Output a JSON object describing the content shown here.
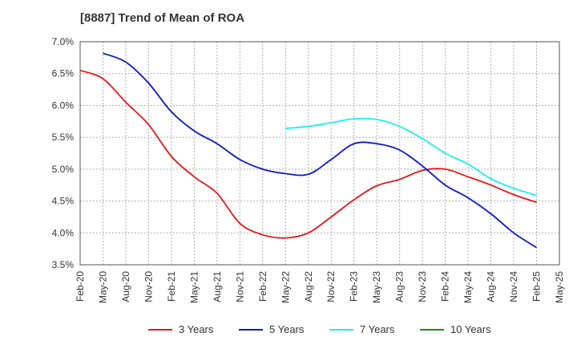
{
  "chart_data": {
    "type": "line",
    "title": "[8887]  Trend of Mean of ROA",
    "xlabel": "",
    "ylabel": "",
    "ylim": [
      3.5,
      7.0
    ],
    "y_ticks": [
      "7.0%",
      "6.5%",
      "6.0%",
      "5.5%",
      "5.0%",
      "4.5%",
      "4.0%",
      "3.5%"
    ],
    "y_tick_values": [
      7.0,
      6.5,
      6.0,
      5.5,
      5.0,
      4.5,
      4.0,
      3.5
    ],
    "categories": [
      "Feb-20",
      "May-20",
      "Aug-20",
      "Nov-20",
      "Feb-21",
      "May-21",
      "Aug-21",
      "Nov-21",
      "Feb-22",
      "May-22",
      "Aug-22",
      "Nov-22",
      "Feb-23",
      "May-23",
      "Aug-23",
      "Nov-23",
      "Feb-24",
      "May-24",
      "Aug-24",
      "Nov-24",
      "Feb-25",
      "May-25"
    ],
    "grid": true,
    "legend_position": "bottom",
    "series": [
      {
        "name": "3 Years",
        "color": "#e31a1c",
        "values": [
          6.55,
          6.42,
          6.05,
          5.7,
          5.2,
          4.88,
          4.62,
          4.15,
          3.97,
          3.92,
          4.0,
          4.25,
          4.52,
          4.74,
          4.84,
          4.98,
          5.0,
          4.88,
          4.75,
          4.6,
          4.48,
          null
        ]
      },
      {
        "name": "5 Years",
        "color": "#0b18c8",
        "values": [
          null,
          6.82,
          6.68,
          6.35,
          5.9,
          5.6,
          5.4,
          5.15,
          5.0,
          4.93,
          4.92,
          5.15,
          5.4,
          5.4,
          5.3,
          5.05,
          4.75,
          4.55,
          4.3,
          4.0,
          3.77,
          null
        ]
      },
      {
        "name": "7 Years",
        "color": "#19f0f0",
        "values": [
          null,
          null,
          null,
          null,
          null,
          null,
          null,
          null,
          null,
          5.64,
          5.67,
          5.73,
          5.79,
          5.78,
          5.67,
          5.48,
          5.25,
          5.08,
          4.85,
          4.7,
          4.59,
          null
        ]
      },
      {
        "name": "10 Years",
        "color": "#1a8a1a",
        "values": [
          null,
          null,
          null,
          null,
          null,
          null,
          null,
          null,
          null,
          null,
          null,
          null,
          null,
          null,
          null,
          null,
          null,
          null,
          null,
          null,
          null,
          null
        ]
      }
    ]
  }
}
